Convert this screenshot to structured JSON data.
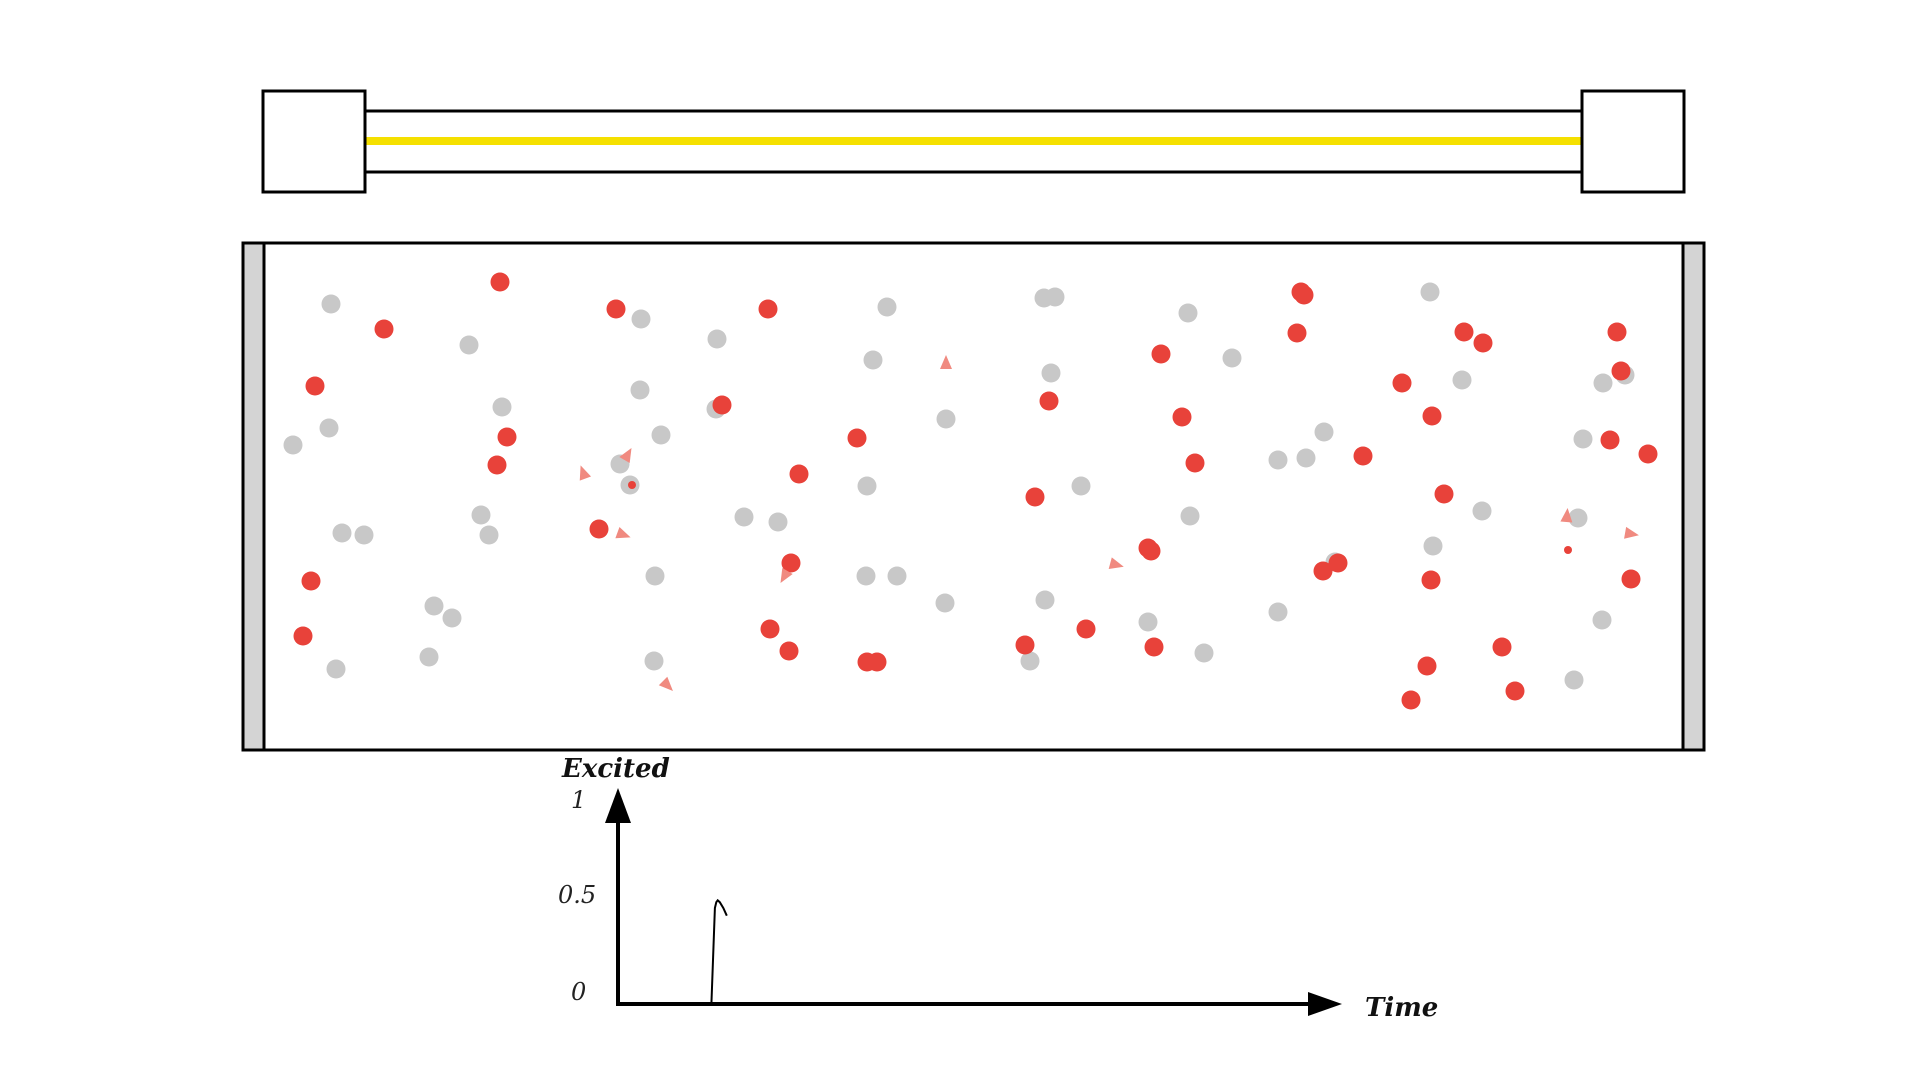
{
  "colors": {
    "excited": "#e8423a",
    "ground": "#c8c8c8",
    "photon": "#f08a80",
    "beam": "#f5e000",
    "outline": "#000000",
    "wall": "#d4d4d4"
  },
  "lamp": {
    "beam_color": "#f5e000"
  },
  "graph": {
    "y_title": "Excited",
    "x_title": "Time",
    "y_ticks": [
      "1",
      "0.5",
      "0"
    ]
  },
  "chart_data": {
    "type": "line",
    "xlabel": "Time",
    "ylabel": "Excited",
    "ylim": [
      0,
      1
    ],
    "series": [
      {
        "x": [
          0.0,
          0.133,
          0.136,
          0.138,
          0.14,
          0.142,
          0.145,
          0.15,
          0.155
        ],
        "y": [
          0.0,
          0.0,
          0.3,
          0.5,
          0.53,
          0.54,
          0.53,
          0.5,
          0.46
        ]
      }
    ]
  },
  "particles": {
    "excited_count": 49,
    "ground_count": 57
  }
}
